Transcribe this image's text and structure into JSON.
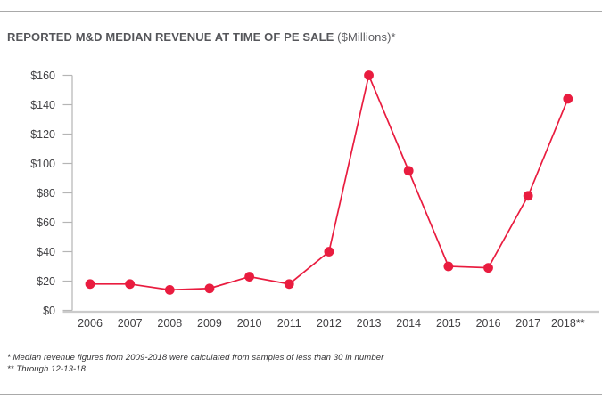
{
  "page": {
    "title_main": "REPORTED M&D MEDIAN REVENUE AT TIME OF PE SALE",
    "title_unit": " ($Millions)*",
    "footnote_1": "* Median revenue figures from 2009-2018 were calculated from samples of less than 30 in number",
    "footnote_2": "** Through 12-13-18"
  },
  "colors": {
    "accent_red": "#e91c3f",
    "title_gray": "#55565a",
    "axis_gray": "#b5b5b5",
    "baseline_gray": "#cbcbcb",
    "label_gray": "#414043",
    "rule_gray": "#a9a9a9"
  },
  "chart_data": {
    "type": "line",
    "title": "REPORTED M&D MEDIAN REVENUE AT TIME OF PE SALE ($Millions)*",
    "categories": [
      "2006",
      "2007",
      "2008",
      "2009",
      "2010",
      "2011",
      "2012",
      "2013",
      "2014",
      "2015",
      "2016",
      "2017",
      "2018**"
    ],
    "values": [
      18,
      18,
      14,
      15,
      23,
      18,
      40,
      160,
      95,
      30,
      29,
      78,
      144
    ],
    "series_name": "Reported M&D median revenue at time of PE sale ($M)",
    "xlabel": "",
    "ylabel": "",
    "ylim": [
      0,
      160
    ],
    "ytick_interval": 20,
    "ytick_labels": [
      "$0",
      "$20",
      "$40",
      "$60",
      "$80",
      "$100",
      "$120",
      "$140",
      "$160"
    ],
    "grid": false,
    "legend": false,
    "marker": "circle",
    "line_color": "#e91c3f"
  }
}
